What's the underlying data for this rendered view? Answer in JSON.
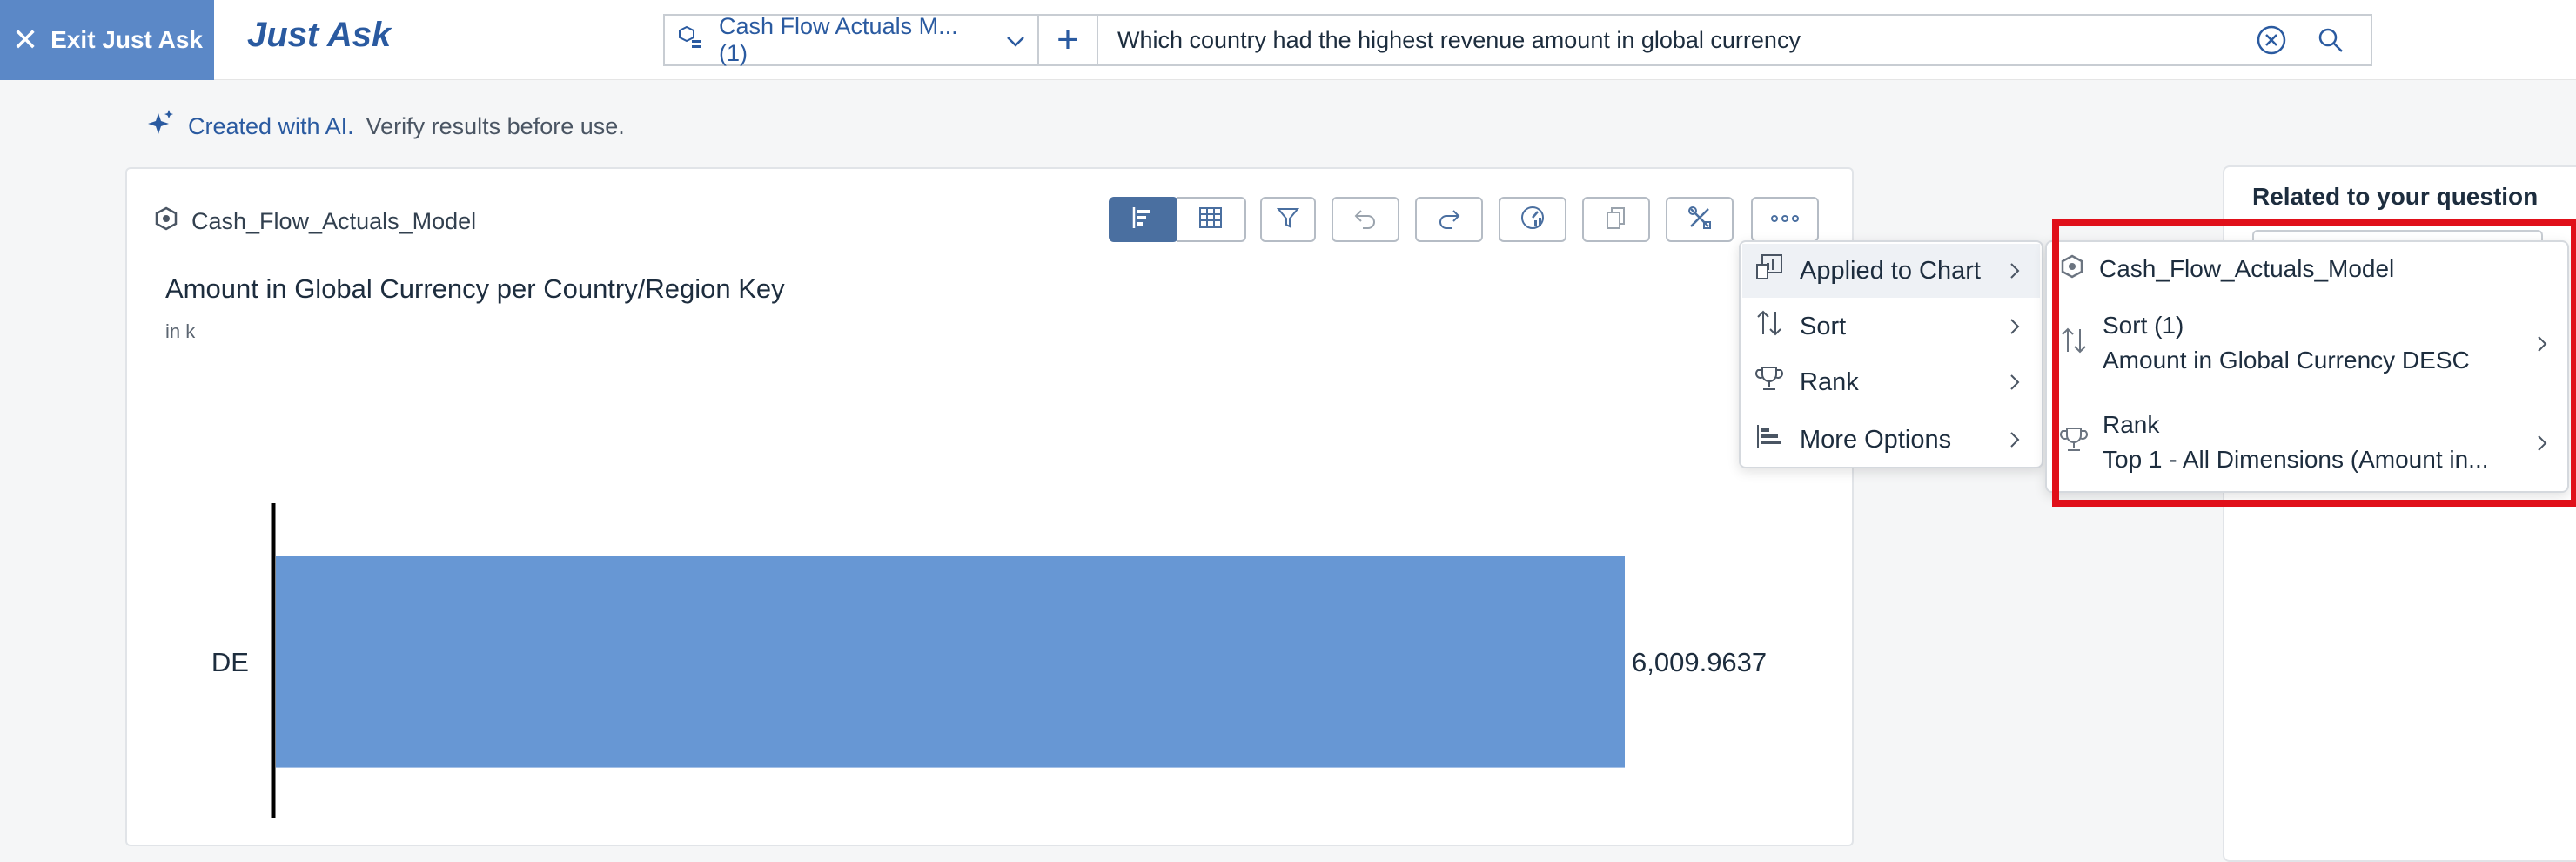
{
  "header": {
    "exit_label": "Exit Just Ask",
    "app_title": "Just Ask",
    "model_selector": "Cash Flow Actuals M... (1)",
    "query": "Which country had the highest revenue amount in global currency"
  },
  "notice": {
    "highlight": "Created with AI.",
    "rest": "Verify results before use."
  },
  "card": {
    "model_name": "Cash_Flow_Actuals_Model"
  },
  "chart_data": {
    "type": "bar",
    "orientation": "horizontal",
    "title": "Amount in Global Currency per Country/Region Key",
    "subtitle": "in k",
    "categories": [
      "DE"
    ],
    "values": [
      6009.9637
    ],
    "value_labels": [
      "6,009.9637"
    ],
    "bar_color": "#6797d4"
  },
  "menu": {
    "items": [
      "Applied to Chart",
      "Sort",
      "Rank",
      "More Options"
    ]
  },
  "submenu": {
    "model": "Cash_Flow_Actuals_Model",
    "sort_title": "Sort (1)",
    "sort_detail": "Amount in Global Currency DESC",
    "rank_title": "Rank",
    "rank_detail": "Top 1 - All Dimensions (Amount in..."
  },
  "related": {
    "title": "Related to your question"
  },
  "colors": {
    "accent": "#2a5aa0",
    "highlight_border": "#e0101a"
  }
}
